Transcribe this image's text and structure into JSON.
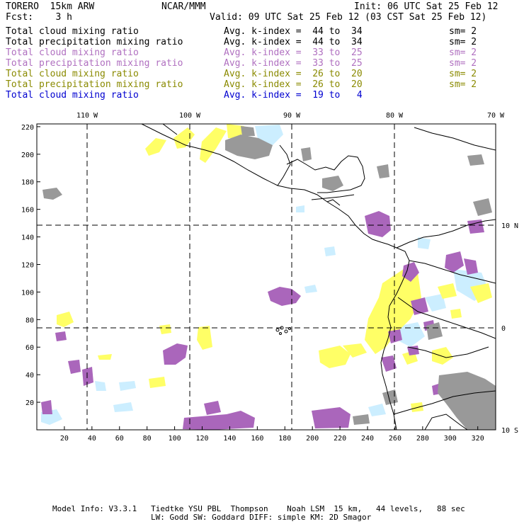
{
  "header": {
    "model": "TORERO  15km ARW",
    "center": "NCAR/MMM",
    "init": "Init: 06 UTC Sat 25 Feb 12",
    "fcst": "Fcst:    3 h",
    "valid": "Valid: 09 UTC Sat 25 Feb 12 (03 CST Sat 25 Feb 12)"
  },
  "legend": [
    {
      "field": "Total cloud mixing ratio",
      "index": "Avg. k-index =  44 to  34",
      "sm": "sm= 2",
      "color": "#000000"
    },
    {
      "field": "Total precipitation mixing ratio",
      "index": "Avg. k-index =  44 to  34",
      "sm": "sm= 2",
      "color": "#000000"
    },
    {
      "field": "Total cloud mixing ratio",
      "index": "Avg. k-index =  33 to  25",
      "sm": "sm= 2",
      "color": "#b070c0"
    },
    {
      "field": "Total precipitation mixing ratio",
      "index": "Avg. k-index =  33 to  25",
      "sm": "sm= 2",
      "color": "#b070c0"
    },
    {
      "field": "Total cloud mixing ratio",
      "index": "Avg. k-index =  26 to  20",
      "sm": "sm= 2",
      "color": "#8a8a00"
    },
    {
      "field": "Total precipitation mixing ratio",
      "index": "Avg. k-index =  26 to  20",
      "sm": "sm= 2",
      "color": "#8a8a00"
    },
    {
      "field": "Total cloud mixing ratio",
      "index": "Avg. k-index =  19 to   4",
      "sm": "",
      "color": "#0000d0"
    }
  ],
  "map": {
    "lon_labels": [
      "110 W",
      "100 W",
      "90 W",
      "80 W",
      "70 W"
    ],
    "lat_labels": [
      "10 N",
      "0",
      "10 S"
    ],
    "x_ticks": [
      "20",
      "40",
      "60",
      "80",
      "100",
      "120",
      "140",
      "160",
      "180",
      "200",
      "220",
      "240",
      "260",
      "280",
      "300",
      "320"
    ],
    "y_ticks": [
      "20",
      "40",
      "60",
      "80",
      "100",
      "120",
      "140",
      "160",
      "180",
      "200",
      "220"
    ],
    "fill_colors": {
      "upper": "#999999",
      "mid": "#aa66bb",
      "low": "#ffff66",
      "lowest": "#cceeff"
    }
  },
  "footer": {
    "line1": "Model Info: V3.3.1   Tiedtke YSU PBL  Thompson    Noah LSM  15 km,   44 levels,   88 sec",
    "line2": "LW: Godd SW: Goddard DIFF: simple KM: 2D Smagor"
  }
}
